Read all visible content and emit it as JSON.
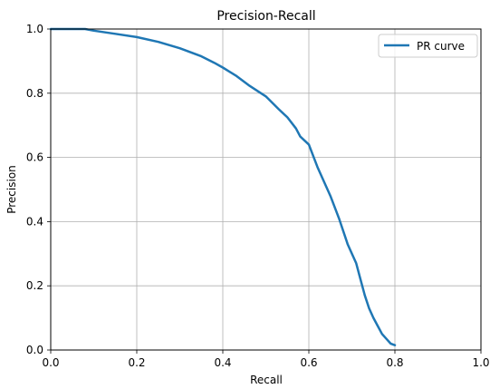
{
  "chart_data": {
    "type": "line",
    "title": "Precision-Recall",
    "xlabel": "Recall",
    "ylabel": "Precision",
    "xlim": [
      0.0,
      1.0
    ],
    "ylim": [
      0.0,
      1.0
    ],
    "xticks": [
      "0.0",
      "0.2",
      "0.4",
      "0.6",
      "0.8",
      "1.0"
    ],
    "yticks": [
      "0.0",
      "0.2",
      "0.4",
      "0.6",
      "0.8",
      "1.0"
    ],
    "grid": true,
    "legend_position": "top-right",
    "series": [
      {
        "name": "PR curve",
        "color": "#1f77b4",
        "x": [
          0.0,
          0.05,
          0.08,
          0.1,
          0.15,
          0.2,
          0.25,
          0.3,
          0.35,
          0.38,
          0.4,
          0.43,
          0.46,
          0.5,
          0.53,
          0.55,
          0.57,
          0.58,
          0.6,
          0.62,
          0.65,
          0.67,
          0.69,
          0.71,
          0.72,
          0.73,
          0.74,
          0.75,
          0.76,
          0.77,
          0.78,
          0.79,
          0.8
        ],
        "y": [
          1.0,
          1.0,
          1.0,
          0.995,
          0.985,
          0.975,
          0.96,
          0.94,
          0.915,
          0.895,
          0.88,
          0.855,
          0.825,
          0.79,
          0.75,
          0.725,
          0.69,
          0.665,
          0.64,
          0.57,
          0.48,
          0.41,
          0.33,
          0.27,
          0.22,
          0.17,
          0.13,
          0.1,
          0.075,
          0.05,
          0.035,
          0.02,
          0.015
        ]
      }
    ]
  }
}
